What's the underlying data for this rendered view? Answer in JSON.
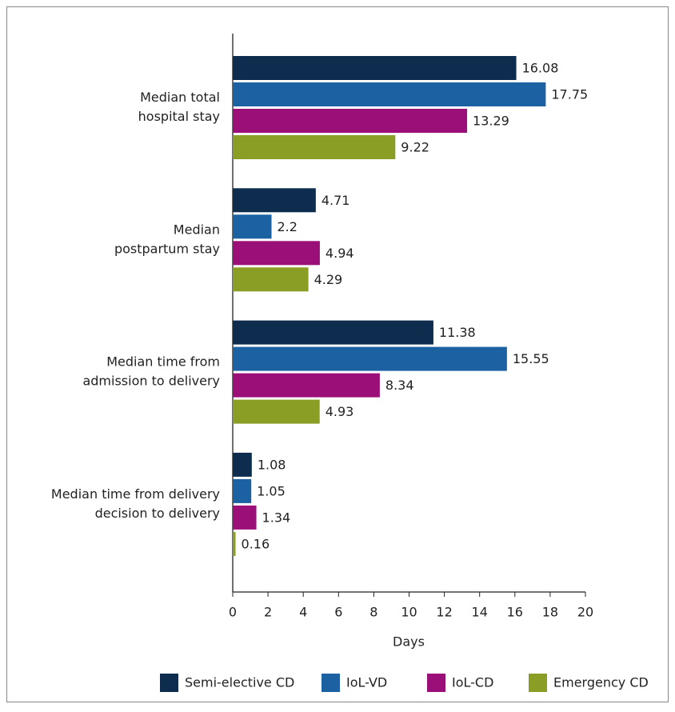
{
  "chart_data": {
    "type": "hbar",
    "categories": [
      [
        "Median total",
        "hospital stay"
      ],
      [
        "Median",
        "postpartum stay"
      ],
      [
        "Median time from",
        "admission to delivery"
      ],
      [
        "Median time from delivery",
        "decision to delivery"
      ]
    ],
    "series": [
      {
        "name": "Semi-elective CD",
        "color": "#0e2d4e",
        "values": [
          16.08,
          4.71,
          11.38,
          1.08
        ]
      },
      {
        "name": "IoL-VD",
        "color": "#1c62a3",
        "values": [
          17.75,
          2.2,
          15.55,
          1.05
        ]
      },
      {
        "name": "IoL-CD",
        "color": "#9b0f78",
        "values": [
          13.29,
          4.94,
          8.34,
          1.34
        ]
      },
      {
        "name": "Emergency CD",
        "color": "#8a9d24",
        "values": [
          9.22,
          4.29,
          4.93,
          0.16
        ]
      }
    ],
    "xlabel": "Days",
    "xlim": [
      0,
      20
    ],
    "xticks": [
      0,
      2,
      4,
      6,
      8,
      10,
      12,
      14,
      16,
      18,
      20
    ],
    "legend": "bottom"
  }
}
